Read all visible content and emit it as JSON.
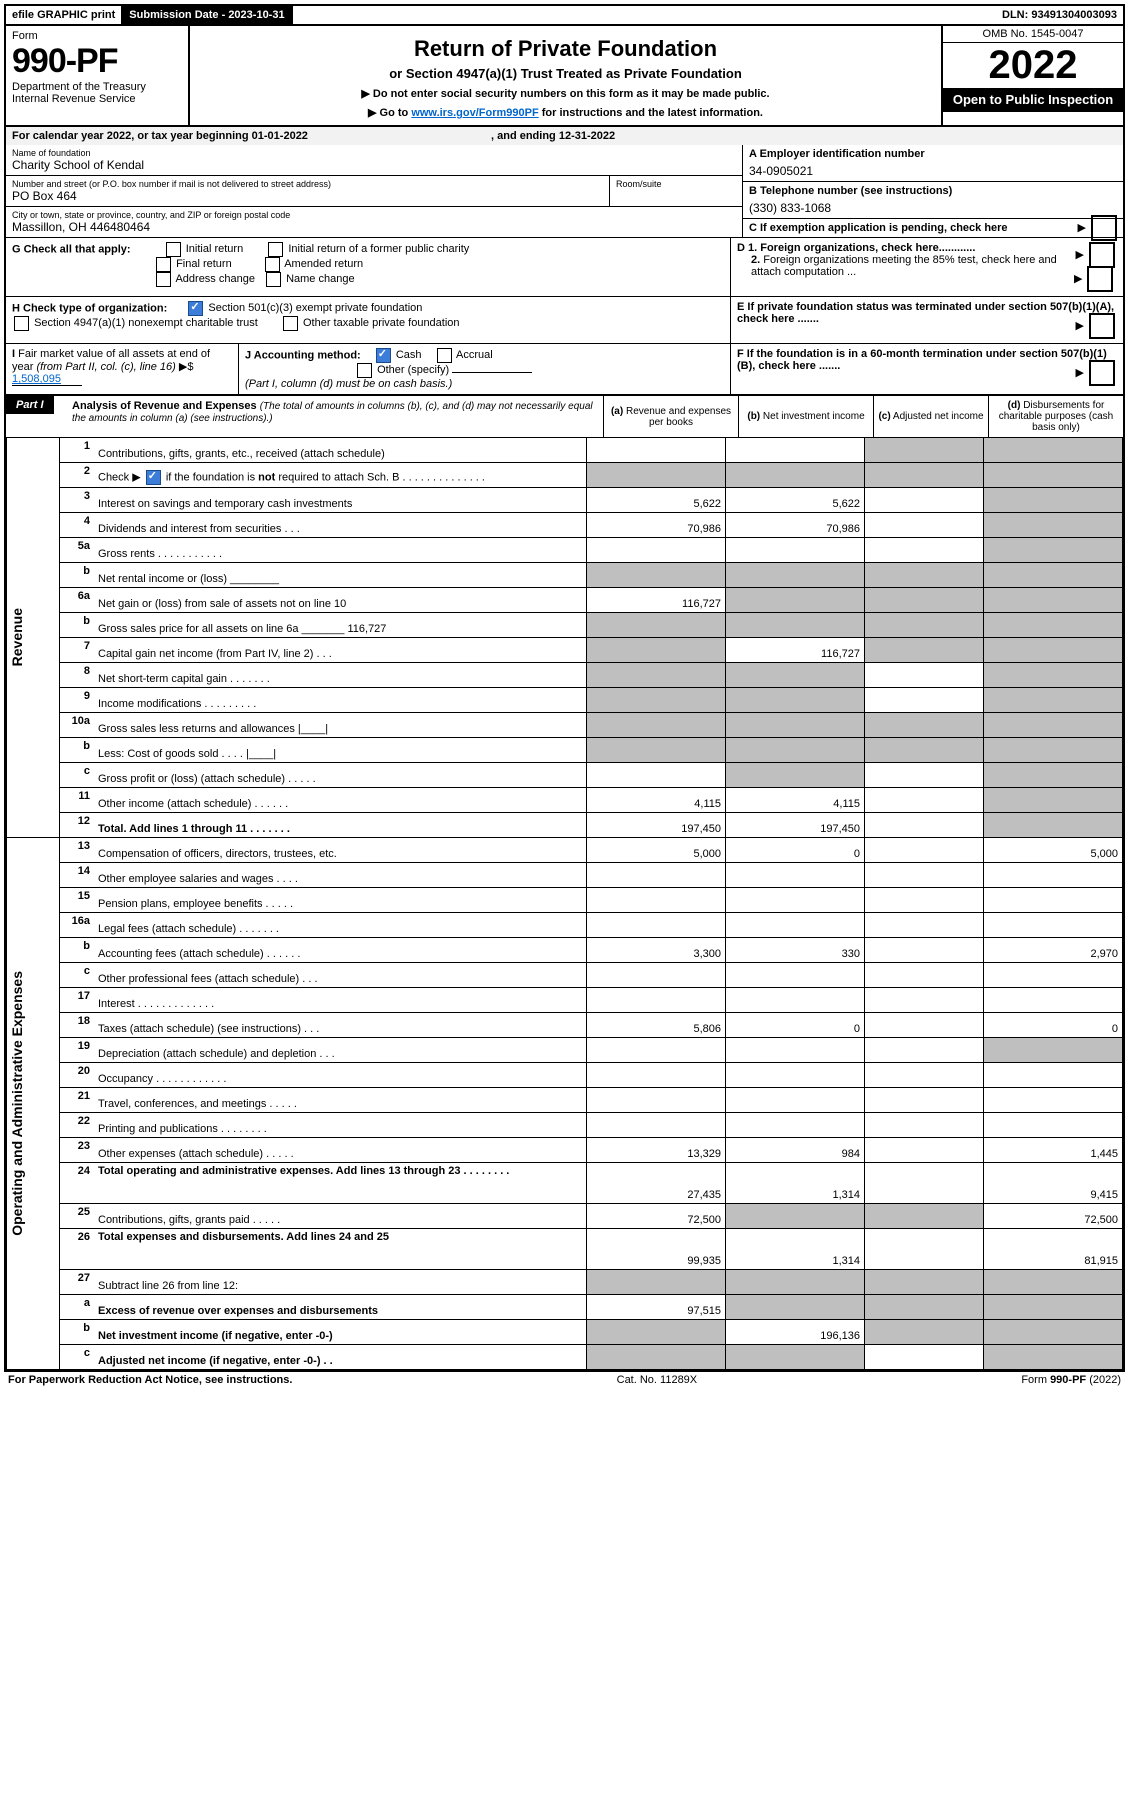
{
  "topbar": {
    "efile": "efile GRAPHIC print",
    "submission": "Submission Date - 2023-10-31",
    "dln": "DLN: 93491304003093"
  },
  "header": {
    "form_label": "Form",
    "form_no": "990-PF",
    "dept": "Department of the Treasury",
    "irs": "Internal Revenue Service",
    "title": "Return of Private Foundation",
    "subtitle": "or Section 4947(a)(1) Trust Treated as Private Foundation",
    "note1": "▶ Do not enter social security numbers on this form as it may be made public.",
    "note2_pre": "▶ Go to ",
    "note2_link": "www.irs.gov/Form990PF",
    "note2_post": " for instructions and the latest information.",
    "omb": "OMB No. 1545-0047",
    "year": "2022",
    "open": "Open to Public Inspection"
  },
  "cal": {
    "text_pre": "For calendar year 2022, or tax year beginning ",
    "begin": "01-01-2022",
    "mid": ", and ending ",
    "end": "12-31-2022"
  },
  "id": {
    "name_label": "Name of foundation",
    "name": "Charity School of Kendal",
    "addr_label": "Number and street (or P.O. box number if mail is not delivered to street address)",
    "addr": "PO Box 464",
    "room_label": "Room/suite",
    "city_label": "City or town, state or province, country, and ZIP or foreign postal code",
    "city": "Massillon, OH  446480464",
    "a_label": "A Employer identification number",
    "a_val": "34-0905021",
    "b_label": "B Telephone number (see instructions)",
    "b_val": "(330) 833-1068",
    "c_label": "C If exemption application is pending, check here"
  },
  "g": {
    "label": "G Check all that apply:",
    "opts": [
      "Initial return",
      "Initial return of a former public charity",
      "Final return",
      "Amended return",
      "Address change",
      "Name change"
    ]
  },
  "h": {
    "label": "H Check type of organization:",
    "opt1": "Section 501(c)(3) exempt private foundation",
    "opt2": "Section 4947(a)(1) nonexempt charitable trust",
    "opt3": "Other taxable private foundation"
  },
  "i": {
    "label": "I Fair market value of all assets at end of year (from Part II, col. (c), line 16)",
    "val": "1,508,095"
  },
  "j": {
    "label": "J Accounting method:",
    "opt1": "Cash",
    "opt2": "Accrual",
    "opt3": "Other (specify)",
    "note": "(Part I, column (d) must be on cash basis.)"
  },
  "d_section": {
    "d1": "D 1. Foreign organizations, check here............",
    "d2": "2. Foreign organizations meeting the 85% test, check here and attach computation ...",
    "e": "E  If private foundation status was terminated under section 507(b)(1)(A), check here .......",
    "f": "F  If the foundation is in a 60-month termination under section 507(b)(1)(B), check here ......."
  },
  "part1": {
    "label": "Part I",
    "title": "Analysis of Revenue and Expenses",
    "title_note": "(The total of amounts in columns (b), (c), and (d) may not necessarily equal the amounts in column (a) (see instructions).)",
    "col_a": "(a) Revenue and expenses per books",
    "col_b": "(b) Net investment income",
    "col_c": "(c) Adjusted net income",
    "col_d": "(d) Disbursements for charitable purposes (cash basis only)"
  },
  "side_labels": {
    "revenue": "Revenue",
    "expenses": "Operating and Administrative Expenses"
  },
  "rows": [
    {
      "n": "1",
      "desc": "Contributions, gifts, grants, etc., received (attach schedule)",
      "a": "",
      "b": "",
      "c": "s",
      "d": "s"
    },
    {
      "n": "2",
      "desc": "Check ▶ ☑ if the foundation is not required to attach Sch. B   .  .  .  .  .  .  .  .  .  .  .  .  .  .",
      "a": "s",
      "b": "s",
      "c": "s",
      "d": "s",
      "bold_not": true
    },
    {
      "n": "3",
      "desc": "Interest on savings and temporary cash investments",
      "a": "5,622",
      "b": "5,622",
      "c": "",
      "d": "s"
    },
    {
      "n": "4",
      "desc": "Dividends and interest from securities   .   .   .",
      "a": "70,986",
      "b": "70,986",
      "c": "",
      "d": "s"
    },
    {
      "n": "5a",
      "desc": "Gross rents   .   .   .   .   .   .   .   .   .   .   .",
      "a": "",
      "b": "",
      "c": "",
      "d": "s"
    },
    {
      "n": "b",
      "desc": "Net rental income or (loss) ________",
      "a": "s",
      "b": "s",
      "c": "s",
      "d": "s"
    },
    {
      "n": "6a",
      "desc": "Net gain or (loss) from sale of assets not on line 10",
      "a": "116,727",
      "b": "s",
      "c": "s",
      "d": "s"
    },
    {
      "n": "b",
      "desc": "Gross sales price for all assets on line 6a _______ 116,727",
      "a": "s",
      "b": "s",
      "c": "s",
      "d": "s"
    },
    {
      "n": "7",
      "desc": "Capital gain net income (from Part IV, line 2)   .   .   .",
      "a": "s",
      "b": "116,727",
      "c": "s",
      "d": "s"
    },
    {
      "n": "8",
      "desc": "Net short-term capital gain   .   .   .   .   .   .   .",
      "a": "s",
      "b": "s",
      "c": "",
      "d": "s"
    },
    {
      "n": "9",
      "desc": "Income modifications   .   .   .   .   .   .   .   .   .",
      "a": "s",
      "b": "s",
      "c": "",
      "d": "s"
    },
    {
      "n": "10a",
      "desc": "Gross sales less returns and allowances  |____|",
      "a": "s",
      "b": "s",
      "c": "s",
      "d": "s"
    },
    {
      "n": "b",
      "desc": "Less: Cost of goods sold   .   .   .   .   |____|",
      "a": "s",
      "b": "s",
      "c": "s",
      "d": "s"
    },
    {
      "n": "c",
      "desc": "Gross profit or (loss) (attach schedule)   .   .   .   .   .",
      "a": "",
      "b": "s",
      "c": "",
      "d": "s"
    },
    {
      "n": "11",
      "desc": "Other income (attach schedule)   .   .   .   .   .   .",
      "a": "4,115",
      "b": "4,115",
      "c": "",
      "d": "s"
    },
    {
      "n": "12",
      "desc": "Total. Add lines 1 through 11   .   .   .   .   .   .   .",
      "a": "197,450",
      "b": "197,450",
      "c": "",
      "d": "s",
      "bold": true
    }
  ],
  "exp_rows": [
    {
      "n": "13",
      "desc": "Compensation of officers, directors, trustees, etc.",
      "a": "5,000",
      "b": "0",
      "c": "",
      "d": "5,000"
    },
    {
      "n": "14",
      "desc": "Other employee salaries and wages   .   .   .   .",
      "a": "",
      "b": "",
      "c": "",
      "d": ""
    },
    {
      "n": "15",
      "desc": "Pension plans, employee benefits   .   .   .   .   .",
      "a": "",
      "b": "",
      "c": "",
      "d": ""
    },
    {
      "n": "16a",
      "desc": "Legal fees (attach schedule)   .   .   .   .   .   .   .",
      "a": "",
      "b": "",
      "c": "",
      "d": ""
    },
    {
      "n": "b",
      "desc": "Accounting fees (attach schedule)   .   .   .   .   .   .",
      "a": "3,300",
      "b": "330",
      "c": "",
      "d": "2,970"
    },
    {
      "n": "c",
      "desc": "Other professional fees (attach schedule)   .   .   .",
      "a": "",
      "b": "",
      "c": "",
      "d": ""
    },
    {
      "n": "17",
      "desc": "Interest   .   .   .   .   .   .   .   .   .   .   .   .   .",
      "a": "",
      "b": "",
      "c": "",
      "d": ""
    },
    {
      "n": "18",
      "desc": "Taxes (attach schedule) (see instructions)   .   .   .",
      "a": "5,806",
      "b": "0",
      "c": "",
      "d": "0"
    },
    {
      "n": "19",
      "desc": "Depreciation (attach schedule) and depletion   .   .   .",
      "a": "",
      "b": "",
      "c": "",
      "d": "s"
    },
    {
      "n": "20",
      "desc": "Occupancy   .   .   .   .   .   .   .   .   .   .   .   .",
      "a": "",
      "b": "",
      "c": "",
      "d": ""
    },
    {
      "n": "21",
      "desc": "Travel, conferences, and meetings   .   .   .   .   .",
      "a": "",
      "b": "",
      "c": "",
      "d": ""
    },
    {
      "n": "22",
      "desc": "Printing and publications   .   .   .   .   .   .   .   .",
      "a": "",
      "b": "",
      "c": "",
      "d": ""
    },
    {
      "n": "23",
      "desc": "Other expenses (attach schedule)   .   .   .   .   .",
      "a": "13,329",
      "b": "984",
      "c": "",
      "d": "1,445"
    },
    {
      "n": "24",
      "desc": "Total operating and administrative expenses. Add lines 13 through 23   .   .   .   .   .   .   .   .",
      "a": "27,435",
      "b": "1,314",
      "c": "",
      "d": "9,415",
      "bold": true,
      "tall": true
    },
    {
      "n": "25",
      "desc": "Contributions, gifts, grants paid   .   .   .   .   .",
      "a": "72,500",
      "b": "s",
      "c": "s",
      "d": "72,500"
    },
    {
      "n": "26",
      "desc": "Total expenses and disbursements. Add lines 24 and 25",
      "a": "99,935",
      "b": "1,314",
      "c": "",
      "d": "81,915",
      "bold": true,
      "tall": true
    }
  ],
  "bottom_rows": [
    {
      "n": "27",
      "desc": "Subtract line 26 from line 12:",
      "a": "s",
      "b": "s",
      "c": "s",
      "d": "s"
    },
    {
      "n": "a",
      "desc": "Excess of revenue over expenses and disbursements",
      "a": "97,515",
      "b": "s",
      "c": "s",
      "d": "s",
      "bold": true
    },
    {
      "n": "b",
      "desc": "Net investment income (if negative, enter -0-)",
      "a": "s",
      "b": "196,136",
      "c": "s",
      "d": "s",
      "bold": true
    },
    {
      "n": "c",
      "desc": "Adjusted net income (if negative, enter -0-)   .   .",
      "a": "s",
      "b": "s",
      "c": "",
      "d": "s",
      "bold": true
    }
  ],
  "footer": {
    "left": "For Paperwork Reduction Act Notice, see instructions.",
    "mid": "Cat. No. 11289X",
    "right": "Form 990-PF (2022)"
  }
}
